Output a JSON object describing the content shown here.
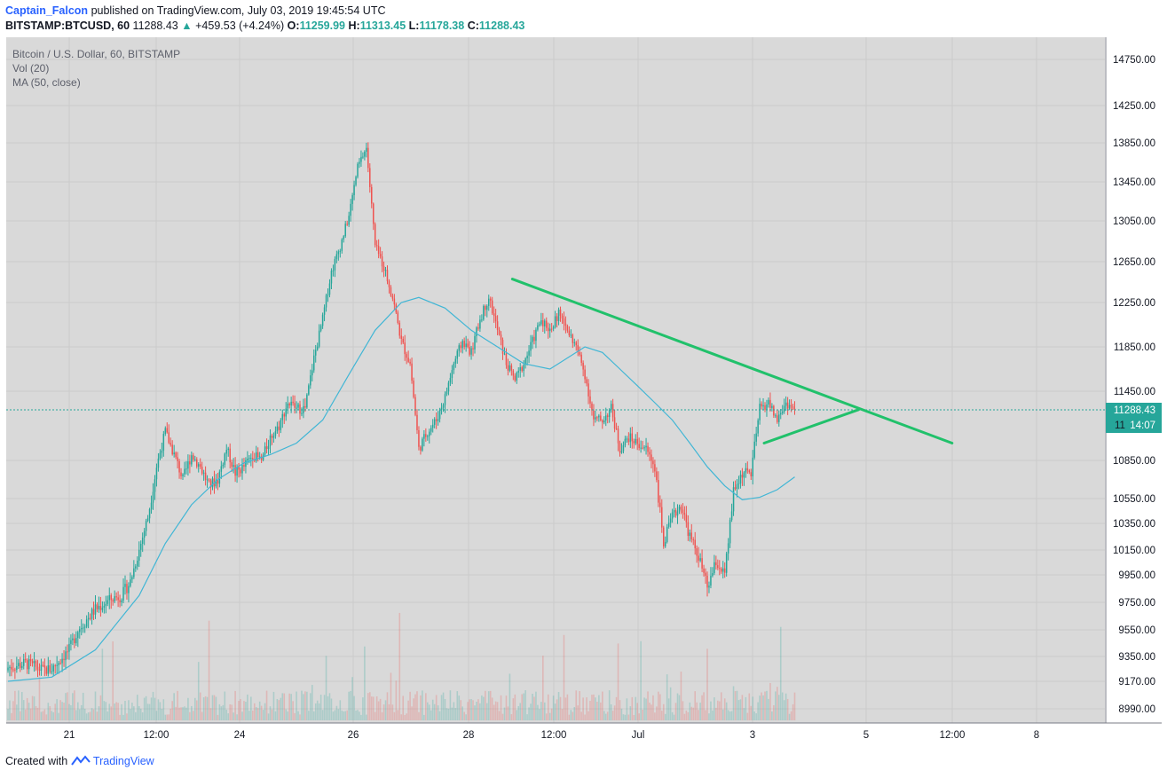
{
  "header": {
    "author": "Captain_Falcon",
    "published_text": "published on TradingView.com, July 03, 2019 19:45:54 UTC",
    "symbol_line": "BITSTAMP:BTCUSD, 60",
    "last_price": "11288.43",
    "change_arrow": "▲",
    "change": "+459.53 (+4.24%)",
    "o_label": "O:",
    "o_val": "11259.99",
    "h_label": "H:",
    "h_val": "11313.45",
    "l_label": "L:",
    "l_val": "11178.38",
    "c_label": "C:",
    "c_val": "11288.43"
  },
  "legend": {
    "title": "Bitcoin / U.S. Dollar, 60, BITSTAMP",
    "volume": "Vol (20)",
    "ma": "MA (50, close)"
  },
  "price_axis": {
    "ticks": [
      "14750.00",
      "14250.00",
      "13850.00",
      "13450.00",
      "13050.00",
      "12650.00",
      "12250.00",
      "11850.00",
      "11450.00",
      "10850.00",
      "10550.00",
      "10350.00",
      "10150.00",
      "9950.00",
      "9750.00",
      "9550.00",
      "9350.00",
      "9170.00",
      "8990.00"
    ],
    "current_price_label": "11288.43",
    "countdown_label": "14:07",
    "partial_label": "11"
  },
  "time_axis": {
    "ticks": [
      "21",
      "12:00",
      "24",
      "26",
      "28",
      "12:00",
      "Jul",
      "3",
      "5",
      "12:00",
      "8"
    ]
  },
  "footer": {
    "created_with": "Created with",
    "brand": "TradingView"
  },
  "colors": {
    "up": "#26a69a",
    "down": "#ef5350",
    "ma": "#41b6d5",
    "trendline": "#21c16b",
    "background": "#d9d9d9",
    "price_tag": "#26a69a"
  },
  "chart_data": {
    "type": "candlestick",
    "symbol": "BITSTAMP:BTCUSD",
    "interval": "60",
    "ylim": [
      8900,
      14950
    ],
    "x_ticks": [
      "21",
      "12:00",
      "24",
      "26",
      "28",
      "12:00",
      "Jul",
      "3",
      "5",
      "12:00",
      "8"
    ],
    "close_path": [
      [
        0,
        9270
      ],
      [
        2,
        9300
      ],
      [
        4,
        9250
      ],
      [
        5,
        9260
      ],
      [
        7,
        9400
      ],
      [
        8,
        9550
      ],
      [
        10,
        9700
      ],
      [
        12,
        9780
      ],
      [
        13,
        9800
      ],
      [
        14,
        9900
      ],
      [
        16,
        10400
      ],
      [
        17,
        10800
      ],
      [
        18,
        11100
      ],
      [
        19,
        10900
      ],
      [
        20,
        10700
      ],
      [
        21,
        10900
      ],
      [
        22,
        10800
      ],
      [
        23,
        10650
      ],
      [
        24,
        10700
      ],
      [
        25,
        10950
      ],
      [
        26,
        10750
      ],
      [
        27,
        10800
      ],
      [
        28,
        10900
      ],
      [
        29,
        10850
      ],
      [
        30,
        11050
      ],
      [
        31,
        11150
      ],
      [
        32,
        11350
      ],
      [
        33,
        11300
      ],
      [
        34,
        11300
      ],
      [
        35,
        11750
      ],
      [
        36,
        12100
      ],
      [
        37,
        12550
      ],
      [
        38,
        12800
      ],
      [
        39,
        13100
      ],
      [
        40,
        13600
      ],
      [
        41,
        13800
      ],
      [
        42,
        12800
      ],
      [
        43,
        12600
      ],
      [
        44,
        12300
      ],
      [
        45,
        11900
      ],
      [
        46,
        11700
      ],
      [
        47,
        10950
      ],
      [
        48,
        11100
      ],
      [
        49,
        11200
      ],
      [
        50,
        11400
      ],
      [
        51,
        11700
      ],
      [
        52,
        11900
      ],
      [
        53,
        11800
      ],
      [
        54,
        12100
      ],
      [
        55,
        12300
      ],
      [
        56,
        12000
      ],
      [
        57,
        11700
      ],
      [
        58,
        11550
      ],
      [
        59,
        11700
      ],
      [
        60,
        11900
      ],
      [
        61,
        12100
      ],
      [
        62,
        12000
      ],
      [
        63,
        12150
      ],
      [
        64,
        12000
      ],
      [
        65,
        11850
      ],
      [
        66,
        11600
      ],
      [
        67,
        11200
      ],
      [
        68,
        11200
      ],
      [
        69,
        11300
      ],
      [
        70,
        10950
      ],
      [
        71,
        11050
      ],
      [
        72,
        11000
      ],
      [
        73,
        10950
      ],
      [
        74,
        10800
      ],
      [
        75,
        10200
      ],
      [
        76,
        10400
      ],
      [
        77,
        10500
      ],
      [
        78,
        10250
      ],
      [
        79,
        10100
      ],
      [
        80,
        9850
      ],
      [
        81,
        10050
      ],
      [
        82,
        9950
      ],
      [
        83,
        10600
      ],
      [
        84,
        10750
      ],
      [
        85,
        10750
      ],
      [
        86,
        11300
      ],
      [
        87,
        11350
      ],
      [
        88,
        11200
      ],
      [
        89,
        11350
      ],
      [
        90,
        11288
      ]
    ],
    "ma50": [
      [
        0,
        9170
      ],
      [
        5,
        9200
      ],
      [
        10,
        9400
      ],
      [
        15,
        9800
      ],
      [
        18,
        10200
      ],
      [
        21,
        10500
      ],
      [
        24,
        10700
      ],
      [
        27,
        10830
      ],
      [
        30,
        10900
      ],
      [
        33,
        11000
      ],
      [
        36,
        11200
      ],
      [
        39,
        11600
      ],
      [
        42,
        12000
      ],
      [
        45,
        12250
      ],
      [
        47,
        12300
      ],
      [
        50,
        12200
      ],
      [
        53,
        12000
      ],
      [
        56,
        11850
      ],
      [
        59,
        11700
      ],
      [
        62,
        11650
      ],
      [
        64,
        11750
      ],
      [
        66,
        11850
      ],
      [
        68,
        11800
      ],
      [
        70,
        11650
      ],
      [
        72,
        11500
      ],
      [
        74,
        11350
      ],
      [
        76,
        11200
      ],
      [
        78,
        11000
      ],
      [
        80,
        10800
      ],
      [
        82,
        10650
      ],
      [
        84,
        10540
      ],
      [
        86,
        10560
      ],
      [
        88,
        10620
      ],
      [
        90,
        10720
      ]
    ],
    "trendlines": [
      {
        "name": "descending",
        "from": [
          57.7,
          12480
        ],
        "to": [
          108,
          11000
        ]
      },
      {
        "name": "ascending",
        "from": [
          86.5,
          11000
        ],
        "to": [
          97.3,
          11290
        ]
      }
    ],
    "current_price": 11288.43
  }
}
